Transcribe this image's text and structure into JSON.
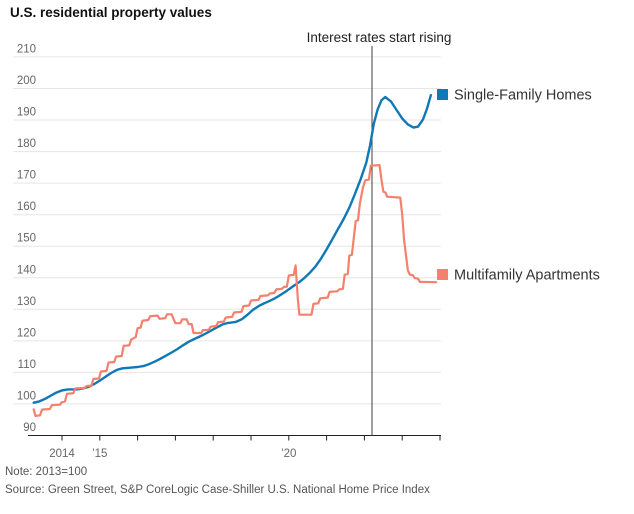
{
  "title": "U.S. residential property values",
  "note": "Note: 2013=100",
  "source": "Source: Green Street, S&P CoreLogic Case-Shiller U.S. National Home Price Index",
  "annotation": {
    "label": "Interest rates start rising",
    "x_year": 2022.2
  },
  "colors": {
    "single_family": "#1079b5",
    "multifamily": "#f4806e",
    "grid": "#e6e6e6",
    "axis": "#222222",
    "event_line": "#3f3f3f",
    "muted_text": "#666666"
  },
  "chart_data": {
    "type": "line",
    "title": "U.S. residential property values",
    "xlabel": "",
    "ylabel": "",
    "ylim": [
      90,
      210
    ],
    "xlim": [
      2013.25,
      2024.05
    ],
    "grid": "horizontal",
    "legend_position": "right of line ends",
    "yticks": [
      90,
      100,
      110,
      120,
      130,
      140,
      150,
      160,
      170,
      180,
      190,
      200,
      210
    ],
    "xticks": [
      {
        "year": 2014,
        "label": "2014"
      },
      {
        "year": 2015,
        "label": "’15"
      },
      {
        "year": 2016,
        "label": ""
      },
      {
        "year": 2017,
        "label": ""
      },
      {
        "year": 2018,
        "label": ""
      },
      {
        "year": 2019,
        "label": ""
      },
      {
        "year": 2020,
        "label": "’20"
      },
      {
        "year": 2021,
        "label": ""
      },
      {
        "year": 2022,
        "label": ""
      },
      {
        "year": 2023,
        "label": ""
      },
      {
        "year": 2024,
        "label": ""
      }
    ],
    "series": [
      {
        "name": "Single-Family Homes",
        "color": "#1079b5",
        "points": [
          [
            2013.25,
            100.4
          ],
          [
            2013.4,
            100.8
          ],
          [
            2013.55,
            101.6
          ],
          [
            2013.7,
            102.6
          ],
          [
            2013.85,
            103.6
          ],
          [
            2014.0,
            104.3
          ],
          [
            2014.15,
            104.6
          ],
          [
            2014.4,
            104.6
          ],
          [
            2014.55,
            104.9
          ],
          [
            2014.7,
            105.4
          ],
          [
            2014.85,
            106.3
          ],
          [
            2015.0,
            107.4
          ],
          [
            2015.15,
            108.6
          ],
          [
            2015.3,
            109.8
          ],
          [
            2015.45,
            110.8
          ],
          [
            2015.6,
            111.3
          ],
          [
            2015.8,
            111.5
          ],
          [
            2016.0,
            111.7
          ],
          [
            2016.15,
            112.0
          ],
          [
            2016.3,
            112.6
          ],
          [
            2016.45,
            113.4
          ],
          [
            2016.6,
            114.3
          ],
          [
            2016.75,
            115.3
          ],
          [
            2016.9,
            116.3
          ],
          [
            2017.05,
            117.4
          ],
          [
            2017.2,
            118.6
          ],
          [
            2017.35,
            119.7
          ],
          [
            2017.5,
            120.6
          ],
          [
            2017.65,
            121.4
          ],
          [
            2017.8,
            122.3
          ],
          [
            2017.95,
            123.3
          ],
          [
            2018.1,
            124.3
          ],
          [
            2018.25,
            125.2
          ],
          [
            2018.4,
            125.7
          ],
          [
            2018.6,
            126.0
          ],
          [
            2018.75,
            126.8
          ],
          [
            2018.9,
            128.2
          ],
          [
            2019.05,
            129.8
          ],
          [
            2019.2,
            131.0
          ],
          [
            2019.35,
            131.9
          ],
          [
            2019.5,
            132.7
          ],
          [
            2019.65,
            133.6
          ],
          [
            2019.8,
            134.7
          ],
          [
            2019.95,
            135.9
          ],
          [
            2020.1,
            137.2
          ],
          [
            2020.25,
            138.4
          ],
          [
            2020.4,
            139.8
          ],
          [
            2020.55,
            141.5
          ],
          [
            2020.7,
            143.5
          ],
          [
            2020.85,
            146.0
          ],
          [
            2021.0,
            149.0
          ],
          [
            2021.15,
            152.2
          ],
          [
            2021.3,
            155.4
          ],
          [
            2021.45,
            158.6
          ],
          [
            2021.6,
            162.2
          ],
          [
            2021.75,
            166.5
          ],
          [
            2021.9,
            171.2
          ],
          [
            2022.05,
            176.5
          ],
          [
            2022.15,
            182.0
          ],
          [
            2022.25,
            188.8
          ],
          [
            2022.35,
            193.3
          ],
          [
            2022.45,
            196.2
          ],
          [
            2022.55,
            197.3
          ],
          [
            2022.7,
            195.9
          ],
          [
            2022.85,
            193.2
          ],
          [
            2023.0,
            190.5
          ],
          [
            2023.15,
            188.6
          ],
          [
            2023.3,
            187.6
          ],
          [
            2023.42,
            187.9
          ],
          [
            2023.55,
            190.2
          ],
          [
            2023.65,
            193.4
          ],
          [
            2023.76,
            197.9
          ]
        ]
      },
      {
        "name": "Multifamily Apartments",
        "color": "#f4806e",
        "points": [
          [
            2013.25,
            98.3
          ],
          [
            2013.3,
            96.2
          ],
          [
            2013.42,
            96.4
          ],
          [
            2013.47,
            98.2
          ],
          [
            2013.68,
            98.4
          ],
          [
            2013.73,
            99.6
          ],
          [
            2013.95,
            99.8
          ],
          [
            2014.0,
            100.6
          ],
          [
            2014.08,
            100.8
          ],
          [
            2014.13,
            103.2
          ],
          [
            2014.3,
            103.4
          ],
          [
            2014.35,
            104.9
          ],
          [
            2014.6,
            105.1
          ],
          [
            2014.65,
            105.7
          ],
          [
            2014.78,
            105.8
          ],
          [
            2014.83,
            107.9
          ],
          [
            2014.98,
            108.1
          ],
          [
            2015.03,
            110.3
          ],
          [
            2015.18,
            110.5
          ],
          [
            2015.23,
            113.1
          ],
          [
            2015.38,
            113.3
          ],
          [
            2015.43,
            115.0
          ],
          [
            2015.58,
            115.2
          ],
          [
            2015.63,
            118.4
          ],
          [
            2015.78,
            118.6
          ],
          [
            2015.83,
            120.4
          ],
          [
            2015.95,
            121.2
          ],
          [
            2016.0,
            124.0
          ],
          [
            2016.08,
            124.2
          ],
          [
            2016.13,
            126.4
          ],
          [
            2016.28,
            126.6
          ],
          [
            2016.33,
            127.8
          ],
          [
            2016.53,
            128.0
          ],
          [
            2016.58,
            127.0
          ],
          [
            2016.73,
            127.2
          ],
          [
            2016.78,
            128.4
          ],
          [
            2016.9,
            128.4
          ],
          [
            2016.95,
            127.0
          ],
          [
            2017.0,
            125.6
          ],
          [
            2017.13,
            125.6
          ],
          [
            2017.18,
            126.8
          ],
          [
            2017.3,
            126.8
          ],
          [
            2017.35,
            125.3
          ],
          [
            2017.43,
            125.3
          ],
          [
            2017.48,
            122.5
          ],
          [
            2017.68,
            122.5
          ],
          [
            2017.73,
            123.4
          ],
          [
            2017.88,
            123.5
          ],
          [
            2017.93,
            124.5
          ],
          [
            2018.08,
            124.7
          ],
          [
            2018.13,
            125.9
          ],
          [
            2018.28,
            126.1
          ],
          [
            2018.33,
            127.4
          ],
          [
            2018.5,
            127.6
          ],
          [
            2018.55,
            129.0
          ],
          [
            2018.75,
            129.2
          ],
          [
            2018.8,
            131.0
          ],
          [
            2018.95,
            131.2
          ],
          [
            2019.0,
            132.8
          ],
          [
            2019.2,
            133.0
          ],
          [
            2019.25,
            134.2
          ],
          [
            2019.45,
            134.4
          ],
          [
            2019.5,
            135.0
          ],
          [
            2019.62,
            135.2
          ],
          [
            2019.67,
            136.3
          ],
          [
            2019.82,
            136.5
          ],
          [
            2019.87,
            137.1
          ],
          [
            2019.95,
            137.2
          ],
          [
            2020.0,
            140.7
          ],
          [
            2020.13,
            140.9
          ],
          [
            2020.18,
            143.9
          ],
          [
            2020.24,
            133.0
          ],
          [
            2020.28,
            128.3
          ],
          [
            2020.6,
            128.3
          ],
          [
            2020.65,
            131.7
          ],
          [
            2020.78,
            131.9
          ],
          [
            2020.83,
            133.5
          ],
          [
            2021.03,
            133.7
          ],
          [
            2021.08,
            135.5
          ],
          [
            2021.28,
            135.7
          ],
          [
            2021.33,
            136.3
          ],
          [
            2021.43,
            136.5
          ],
          [
            2021.48,
            141.0
          ],
          [
            2021.56,
            141.2
          ],
          [
            2021.6,
            147.0
          ],
          [
            2021.67,
            147.3
          ],
          [
            2021.72,
            152.7
          ],
          [
            2021.77,
            158.0
          ],
          [
            2021.83,
            158.2
          ],
          [
            2021.88,
            163.6
          ],
          [
            2021.96,
            168.5
          ],
          [
            2022.02,
            170.9
          ],
          [
            2022.12,
            171.1
          ],
          [
            2022.17,
            175.5
          ],
          [
            2022.4,
            175.7
          ],
          [
            2022.45,
            171.2
          ],
          [
            2022.5,
            167.3
          ],
          [
            2022.56,
            167.0
          ],
          [
            2022.6,
            165.7
          ],
          [
            2022.95,
            165.4
          ],
          [
            2023.0,
            160.0
          ],
          [
            2023.05,
            152.0
          ],
          [
            2023.1,
            147.1
          ],
          [
            2023.15,
            142.3
          ],
          [
            2023.2,
            141.0
          ],
          [
            2023.28,
            140.8
          ],
          [
            2023.33,
            139.9
          ],
          [
            2023.42,
            139.7
          ],
          [
            2023.47,
            138.7
          ],
          [
            2023.9,
            138.6
          ]
        ]
      }
    ]
  }
}
